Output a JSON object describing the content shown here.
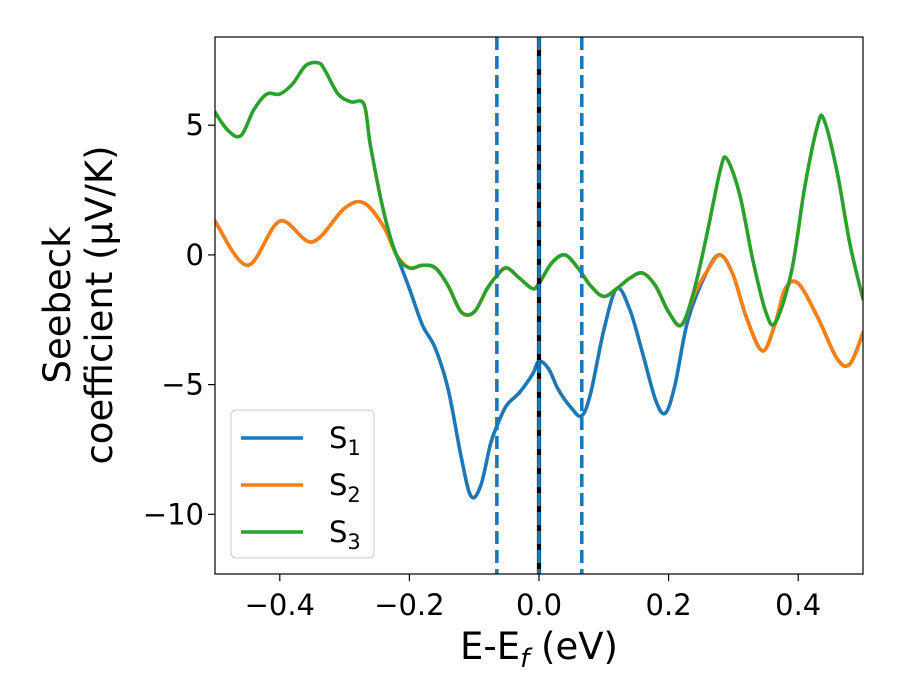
{
  "chart_data": {
    "type": "line",
    "xlabel_main": "E-E",
    "xlabel_sub": "f",
    "xlabel_unit": " (eV)",
    "ylabel_line1": "Seebeck",
    "ylabel_line2": "coefficient  (μV/K)",
    "xlim": [
      -0.5,
      0.5
    ],
    "ylim": [
      -12.3,
      8.4
    ],
    "x_ticks": [
      -0.4,
      -0.2,
      0.0,
      0.2,
      0.4
    ],
    "x_tick_labels": [
      "−0.4",
      "−0.2",
      "0.0",
      "0.2",
      "0.4"
    ],
    "y_ticks": [
      5,
      0,
      -5,
      -10
    ],
    "y_tick_labels": [
      "5",
      "0",
      "−5",
      "−10"
    ],
    "grid": false,
    "legend_position": "lower-left",
    "vlines": [
      {
        "x": -0.065,
        "style": "dashed",
        "color": "#1f77b4"
      },
      {
        "x": 0.0,
        "style": "solid",
        "color": "#000000"
      },
      {
        "x": 0.0,
        "style": "dashed",
        "color": "#1f77b4"
      },
      {
        "x": 0.066,
        "style": "dashed",
        "color": "#1f77b4"
      }
    ],
    "series": [
      {
        "name": "S",
        "sub": "1",
        "color": "#1f77b4",
        "x": [
          -0.5,
          -0.45,
          -0.4,
          -0.35,
          -0.3,
          -0.27,
          -0.24,
          -0.22,
          -0.2,
          -0.18,
          -0.16,
          -0.14,
          -0.12,
          -0.105,
          -0.09,
          -0.075,
          -0.065,
          -0.05,
          -0.03,
          -0.01,
          0.0,
          0.015,
          0.03,
          0.05,
          0.066,
          0.08,
          0.1,
          0.12,
          0.14,
          0.16,
          0.18,
          0.195,
          0.21,
          0.23,
          0.26,
          0.28,
          0.3,
          0.32,
          0.345,
          0.365,
          0.38,
          0.4,
          0.43,
          0.46,
          0.48,
          0.5
        ],
        "y": [
          1.3,
          -0.4,
          1.3,
          0.5,
          1.8,
          2.0,
          1.1,
          0.0,
          -1.3,
          -2.7,
          -3.6,
          -5.2,
          -7.8,
          -9.3,
          -8.9,
          -7.3,
          -6.6,
          -5.8,
          -5.3,
          -4.6,
          -4.1,
          -4.4,
          -5.2,
          -5.9,
          -6.2,
          -5.3,
          -2.9,
          -1.3,
          -2.1,
          -3.8,
          -5.6,
          -6.1,
          -5.0,
          -2.5,
          -0.6,
          0.0,
          -0.8,
          -2.4,
          -3.7,
          -2.6,
          -1.3,
          -1.1,
          -2.4,
          -4.0,
          -4.2,
          -3.0
        ]
      },
      {
        "name": "S",
        "sub": "2",
        "color": "#ff7f0e",
        "x": [
          -0.5,
          -0.45,
          -0.4,
          -0.35,
          -0.3,
          -0.27,
          -0.24,
          -0.22,
          -0.2,
          -0.18,
          -0.16,
          -0.14,
          -0.12,
          -0.1,
          -0.08,
          -0.065,
          -0.05,
          -0.03,
          -0.01,
          0.0,
          0.02,
          0.04,
          0.06,
          0.08,
          0.1,
          0.12,
          0.14,
          0.16,
          0.18,
          0.2,
          0.22,
          0.24,
          0.26,
          0.28,
          0.3,
          0.32,
          0.345,
          0.365,
          0.38,
          0.4,
          0.43,
          0.46,
          0.48,
          0.5
        ],
        "y": [
          1.3,
          -0.4,
          1.3,
          0.5,
          1.8,
          2.0,
          1.1,
          0.0,
          -0.5,
          -0.4,
          -0.5,
          -1.2,
          -2.2,
          -2.2,
          -1.3,
          -0.8,
          -0.5,
          -0.9,
          -1.3,
          -1.1,
          -0.3,
          0.0,
          -0.5,
          -1.2,
          -1.6,
          -1.3,
          -0.9,
          -0.7,
          -1.2,
          -2.2,
          -2.7,
          -1.5,
          -0.6,
          0.0,
          -0.8,
          -2.4,
          -3.7,
          -2.6,
          -1.3,
          -1.1,
          -2.4,
          -4.0,
          -4.2,
          -3.0
        ]
      },
      {
        "name": "S",
        "sub": "3",
        "color": "#2ca02c",
        "x": [
          -0.5,
          -0.48,
          -0.46,
          -0.44,
          -0.42,
          -0.4,
          -0.38,
          -0.36,
          -0.34,
          -0.33,
          -0.31,
          -0.29,
          -0.27,
          -0.26,
          -0.24,
          -0.22,
          -0.2,
          -0.18,
          -0.16,
          -0.14,
          -0.12,
          -0.1,
          -0.08,
          -0.065,
          -0.05,
          -0.03,
          -0.01,
          0.0,
          0.02,
          0.04,
          0.06,
          0.08,
          0.1,
          0.12,
          0.14,
          0.16,
          0.18,
          0.2,
          0.22,
          0.24,
          0.26,
          0.28,
          0.29,
          0.31,
          0.33,
          0.35,
          0.365,
          0.39,
          0.41,
          0.43,
          0.44,
          0.46,
          0.48,
          0.5
        ],
        "y": [
          5.5,
          4.8,
          4.6,
          5.6,
          6.2,
          6.2,
          6.6,
          7.3,
          7.4,
          7.1,
          6.2,
          5.9,
          5.8,
          4.2,
          1.7,
          0.0,
          -0.5,
          -0.4,
          -0.5,
          -1.2,
          -2.2,
          -2.2,
          -1.3,
          -0.8,
          -0.5,
          -0.9,
          -1.3,
          -1.1,
          -0.3,
          0.0,
          -0.5,
          -1.2,
          -1.6,
          -1.3,
          -0.9,
          -0.7,
          -1.2,
          -2.2,
          -2.7,
          -1.3,
          0.9,
          3.3,
          3.7,
          2.3,
          -0.2,
          -2.2,
          -2.6,
          -0.6,
          2.6,
          5.0,
          5.2,
          3.2,
          0.4,
          -1.7
        ]
      }
    ]
  }
}
